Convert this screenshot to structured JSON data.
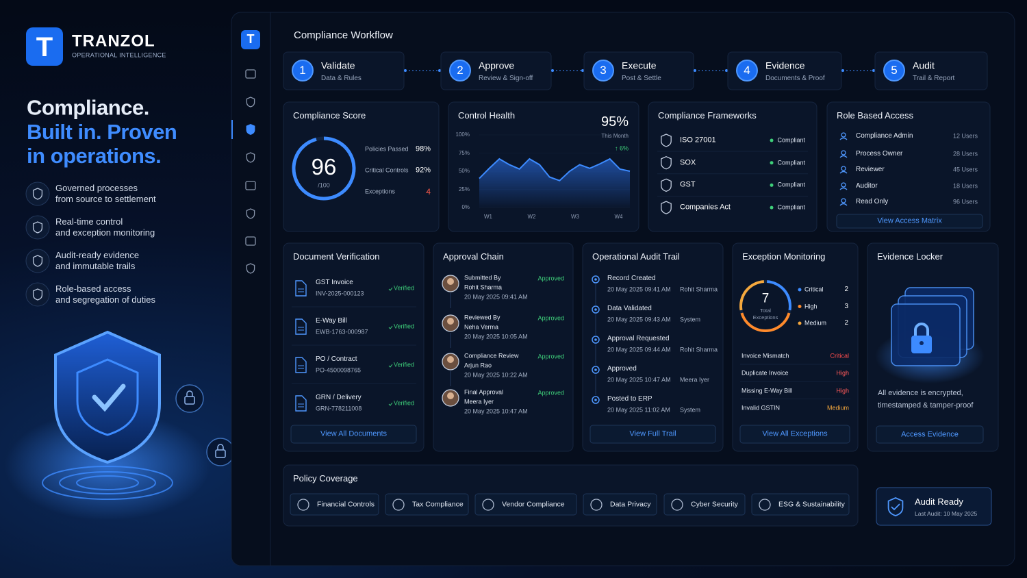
{
  "brand": {
    "logo": "T",
    "name": "TRANZOL",
    "tagline": "OPERATIONAL INTELLIGENCE"
  },
  "hero": {
    "line1": "Compliance.",
    "line2": "Built in. Proven in operations."
  },
  "features": [
    {
      "title": "Governed processes",
      "subtitle": "from source to settlement"
    },
    {
      "title": "Real-time control",
      "subtitle": "and exception monitoring"
    },
    {
      "title": "Audit-ready evidence",
      "subtitle": "and immutable trails"
    },
    {
      "title": "Role-based access",
      "subtitle": "and segregation of duties"
    }
  ],
  "sidebar": {
    "logo": "T"
  },
  "workflow": {
    "title": "Compliance Workflow",
    "steps": [
      {
        "number": 1,
        "title": "Validate",
        "subtitle": "Data & Rules"
      },
      {
        "number": 2,
        "title": "Approve",
        "subtitle": "Review & Sign-off"
      },
      {
        "number": 3,
        "title": "Execute",
        "subtitle": "Post & Settle"
      },
      {
        "number": 4,
        "title": "Evidence",
        "subtitle": "Documents & Proof"
      },
      {
        "number": 5,
        "title": "Audit",
        "subtitle": "Trail & Report"
      }
    ]
  },
  "compliance_score": {
    "title": "Compliance Score",
    "score": 96,
    "max_label": "/100",
    "metrics": [
      {
        "label": "Policies Passed",
        "value": "98%"
      },
      {
        "label": "Critical Controls",
        "value": "92%"
      },
      {
        "label": "Exceptions",
        "value": "4"
      }
    ]
  },
  "control_health": {
    "title": "Control Health",
    "value": "95%",
    "period": "This Month",
    "change": "↑ 6%",
    "chart": {
      "type": "line",
      "color": "#3d8bff",
      "values": [
        40,
        54,
        67,
        59,
        53,
        67,
        59,
        42,
        37,
        50,
        59,
        54,
        60,
        67,
        53,
        50
      ],
      "x_labels": [
        "W1",
        "W2",
        "W3",
        "W4"
      ],
      "ylim": [
        0,
        100
      ],
      "yticks": [
        {
          "value": 0,
          "label": "0%"
        },
        {
          "value": 25,
          "label": "25%"
        },
        {
          "value": 50,
          "label": "50%"
        },
        {
          "value": 75,
          "label": "75%"
        },
        {
          "value": 100,
          "label": "100%"
        }
      ]
    }
  },
  "frameworks": {
    "title": "Compliance Frameworks",
    "items": [
      {
        "name": "ISO 27001",
        "status": "Compliant"
      },
      {
        "name": "SOX",
        "status": "Compliant"
      },
      {
        "name": "GST",
        "status": "Compliant"
      },
      {
        "name": "Companies Act",
        "status": "Compliant"
      }
    ]
  },
  "role_access": {
    "title": "Role Based Access",
    "items": [
      {
        "role": "Compliance Admin",
        "users": "12 Users"
      },
      {
        "role": "Process Owner",
        "users": "28 Users"
      },
      {
        "role": "Reviewer",
        "users": "45 Users"
      },
      {
        "role": "Auditor",
        "users": "18 Users"
      },
      {
        "role": "Read Only",
        "users": "96 Users"
      }
    ],
    "button": "View Access Matrix"
  },
  "document_verification": {
    "title": "Document Verification",
    "items": [
      {
        "name": "GST Invoice",
        "id": "INV-2025-000123",
        "status": "Verified"
      },
      {
        "name": "E-Way Bill",
        "id": "EWB-1763-000987",
        "status": "Verified"
      },
      {
        "name": "PO / Contract",
        "id": "PO-4500098765",
        "status": "Verified"
      },
      {
        "name": "GRN / Delivery",
        "id": "GRN-778211008",
        "status": "Verified"
      }
    ],
    "button": "View All Documents"
  },
  "approval_chain": {
    "title": "Approval Chain",
    "items": [
      {
        "step": "Submitted By",
        "person": "Rohit Sharma",
        "date": "20 May 2025 09:41 AM",
        "status": "Approved"
      },
      {
        "step": "Reviewed By",
        "person": "Neha Verma",
        "date": "20 May 2025 10:05 AM",
        "status": "Approved"
      },
      {
        "step": "Compliance Review",
        "person": "Arjun Rao",
        "date": "20 May 2025 10:22 AM",
        "status": "Approved"
      },
      {
        "step": "Final Approval",
        "person": "Meera Iyer",
        "date": "20 May 2025 10:47 AM",
        "status": "Approved"
      }
    ]
  },
  "audit_trail": {
    "title": "Operational Audit Trail",
    "items": [
      {
        "event": "Record Created",
        "date": "20 May 2025 09:41 AM",
        "user": "Rohit Sharma"
      },
      {
        "event": "Data Validated",
        "date": "20 May 2025 09:43 AM",
        "user": "System"
      },
      {
        "event": "Approval Requested",
        "date": "20 May 2025 09:44 AM",
        "user": "Rohit Sharma"
      },
      {
        "event": "Approved",
        "date": "20 May 2025 10:47 AM",
        "user": "Meera Iyer"
      },
      {
        "event": "Posted to ERP",
        "date": "20 May 2025 11:02 AM",
        "user": "System"
      }
    ],
    "button": "View Full Trail"
  },
  "exception_monitoring": {
    "title": "Exception Monitoring",
    "total": 7,
    "total_label": "Total Exceptions",
    "severity": [
      {
        "name": "Critical",
        "count": 2,
        "color": "#3d8bff"
      },
      {
        "name": "High",
        "count": 3,
        "color": "#ff8a2b"
      },
      {
        "name": "Medium",
        "count": 2,
        "color": "#f5a83d"
      }
    ],
    "items": [
      {
        "name": "Invoice Mismatch",
        "level": "Critical"
      },
      {
        "name": "Duplicate Invoice",
        "level": "High"
      },
      {
        "name": "Missing E-Way Bill",
        "level": "High"
      },
      {
        "name": "Invalid GSTIN",
        "level": "Medium"
      }
    ],
    "button": "View All Exceptions"
  },
  "evidence_locker": {
    "title": "Evidence Locker",
    "text": "All evidence is encrypted, timestamped & tamper-proof",
    "button": "Access Evidence"
  },
  "policy_coverage": {
    "title": "Policy Coverage",
    "items": [
      "Financial Controls",
      "Tax Compliance",
      "Vendor Compliance",
      "Data Privacy",
      "Cyber Security",
      "ESG & Sustainability"
    ]
  },
  "audit_ready": {
    "title": "Audit Ready",
    "subtitle": "Last Audit: 10 May 2025"
  }
}
